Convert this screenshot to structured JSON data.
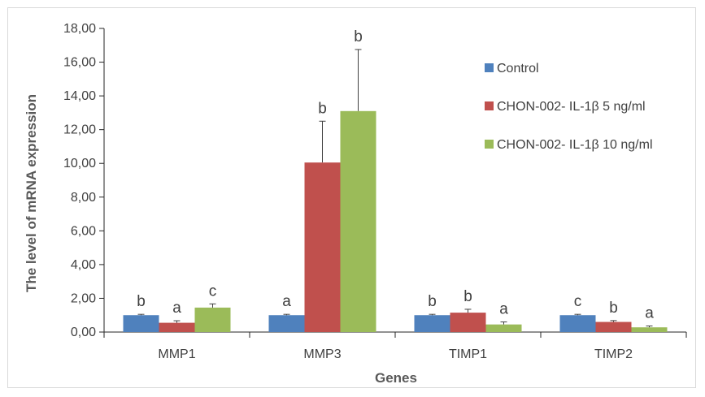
{
  "chart_data": {
    "type": "bar",
    "title": "",
    "xlabel": "Genes",
    "ylabel": "The level of mRNA expression",
    "ylim": [
      0,
      18
    ],
    "yticks": [
      "0,00",
      "2,00",
      "4,00",
      "6,00",
      "8,00",
      "10,00",
      "12,00",
      "14,00",
      "16,00",
      "18,00"
    ],
    "grid": false,
    "legend_position": "top-right",
    "categories": [
      "MMP1",
      "MMP3",
      "TIMP1",
      "TIMP2"
    ],
    "series": [
      {
        "name": "Control",
        "color": "#4f81bd",
        "values": [
          1.0,
          1.0,
          1.0,
          1.0
        ],
        "errors": [
          0.05,
          0.05,
          0.05,
          0.05
        ],
        "labels": [
          "b",
          "a",
          "b",
          "c"
        ]
      },
      {
        "name": "CHON-002- IL-1β 5 ng/ml",
        "color": "#c0504d",
        "values": [
          0.55,
          10.05,
          1.15,
          0.6
        ],
        "errors": [
          0.12,
          2.45,
          0.2,
          0.08
        ],
        "labels": [
          "a",
          "b",
          "b",
          "b"
        ]
      },
      {
        "name": "CHON-002- IL-1β 10 ng/ml",
        "color": "#9bbb59",
        "values": [
          1.45,
          13.1,
          0.45,
          0.28
        ],
        "errors": [
          0.22,
          3.65,
          0.15,
          0.08
        ],
        "labels": [
          "c",
          "b",
          "a",
          "a"
        ]
      }
    ]
  }
}
